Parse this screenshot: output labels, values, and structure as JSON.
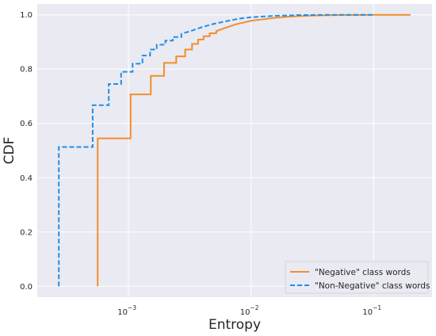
{
  "chart_data": {
    "type": "line",
    "title": "",
    "xlabel": "Entropy",
    "ylabel": "CDF",
    "xscale": "log",
    "xlim": [
      0.00018,
      0.3
    ],
    "ylim": [
      -0.04,
      1.04
    ],
    "xticks": [
      {
        "value": 0.001,
        "base": "10",
        "exp": "−3"
      },
      {
        "value": 0.01,
        "base": "10",
        "exp": "−2"
      },
      {
        "value": 0.1,
        "base": "10",
        "exp": "−1"
      }
    ],
    "yticks": [
      {
        "value": 0.0,
        "label": "0.0"
      },
      {
        "value": 0.2,
        "label": "0.2"
      },
      {
        "value": 0.4,
        "label": "0.4"
      },
      {
        "value": 0.6,
        "label": "0.6"
      },
      {
        "value": 0.8,
        "label": "0.8"
      },
      {
        "value": 1.0,
        "label": "1.0"
      }
    ],
    "grid": true,
    "legend_position": "bottom-right",
    "series": [
      {
        "name": "\"Negative\" class words",
        "color": "#f28e2b",
        "style": "solid",
        "x": [
          0.00056,
          0.00056,
          0.00104,
          0.00104,
          0.00152,
          0.00152,
          0.00195,
          0.00195,
          0.00245,
          0.00245,
          0.0029,
          0.0029,
          0.0033,
          0.0033,
          0.0037,
          0.0037,
          0.0041,
          0.0041,
          0.0046,
          0.0046,
          0.0052,
          0.0052,
          0.006,
          0.0075,
          0.01,
          0.015,
          0.02,
          0.03,
          0.05,
          0.1,
          0.2
        ],
        "y": [
          0.0,
          0.545,
          0.545,
          0.707,
          0.707,
          0.775,
          0.775,
          0.823,
          0.823,
          0.847,
          0.847,
          0.872,
          0.872,
          0.893,
          0.893,
          0.909,
          0.909,
          0.921,
          0.921,
          0.932,
          0.932,
          0.94,
          0.95,
          0.965,
          0.978,
          0.988,
          0.993,
          0.997,
          0.999,
          1.0,
          1.0
        ]
      },
      {
        "name": "\"Non-Negative\" class words",
        "color": "#1f8fe6",
        "style": "dashed",
        "x": [
          0.00027,
          0.00027,
          0.00051,
          0.00051,
          0.00069,
          0.00069,
          0.00087,
          0.00087,
          0.00108,
          0.00108,
          0.0013,
          0.0013,
          0.0015,
          0.0015,
          0.0017,
          0.0017,
          0.002,
          0.002,
          0.0023,
          0.0023,
          0.0027,
          0.0027,
          0.0032,
          0.004,
          0.005,
          0.0065,
          0.008,
          0.01,
          0.015,
          0.025,
          0.05,
          0.1
        ],
        "y": [
          0.0,
          0.513,
          0.513,
          0.667,
          0.667,
          0.745,
          0.745,
          0.79,
          0.79,
          0.82,
          0.82,
          0.85,
          0.85,
          0.872,
          0.872,
          0.89,
          0.89,
          0.905,
          0.905,
          0.918,
          0.918,
          0.93,
          0.94,
          0.955,
          0.967,
          0.978,
          0.986,
          0.991,
          0.996,
          0.999,
          1.0,
          1.0
        ]
      }
    ]
  }
}
